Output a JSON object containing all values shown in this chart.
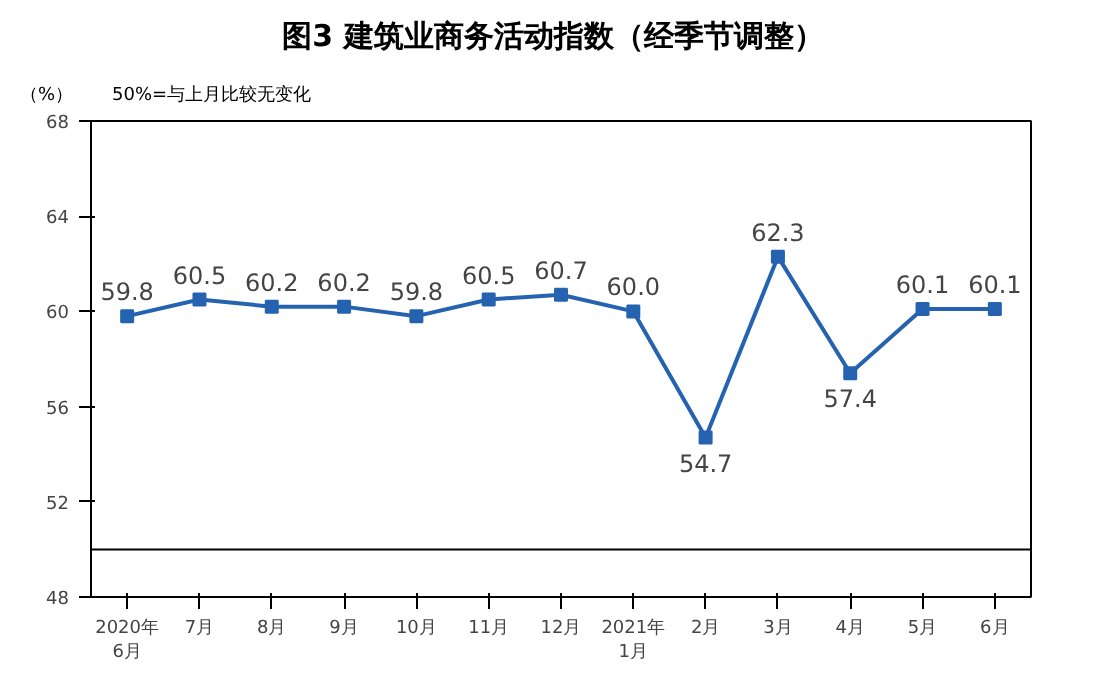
{
  "chart_data": {
    "type": "line",
    "title": "图3  建筑业商务活动指数（经季节调整）",
    "ylabel": "（%）",
    "annotations": [
      "50%=与上月比较无变化"
    ],
    "categories": [
      "2020年\n6月",
      "7月",
      "8月",
      "9月",
      "10月",
      "11月",
      "12月",
      "2021年\n1月",
      "2月",
      "3月",
      "4月",
      "5月",
      "6月"
    ],
    "series": [
      {
        "color": "#2563b0",
        "values": [
          59.8,
          60.5,
          60.2,
          60.2,
          59.8,
          60.5,
          60.7,
          60.0,
          54.7,
          62.3,
          57.4,
          60.1,
          60.1
        ]
      }
    ],
    "value_labels": [
      "59.8",
      "60.5",
      "60.2",
      "60.2",
      "59.8",
      "60.5",
      "60.7",
      "60.0",
      "54.7",
      "62.3",
      "57.4",
      "60.1",
      "60.1"
    ],
    "ylim": [
      48,
      68
    ],
    "yticks": [
      48,
      52,
      56,
      60,
      64,
      68
    ],
    "grid": false,
    "marker": "square",
    "line_style": "solid",
    "ref_lines": [
      {
        "axis": "y",
        "value": 50,
        "color": "#000000"
      }
    ]
  }
}
